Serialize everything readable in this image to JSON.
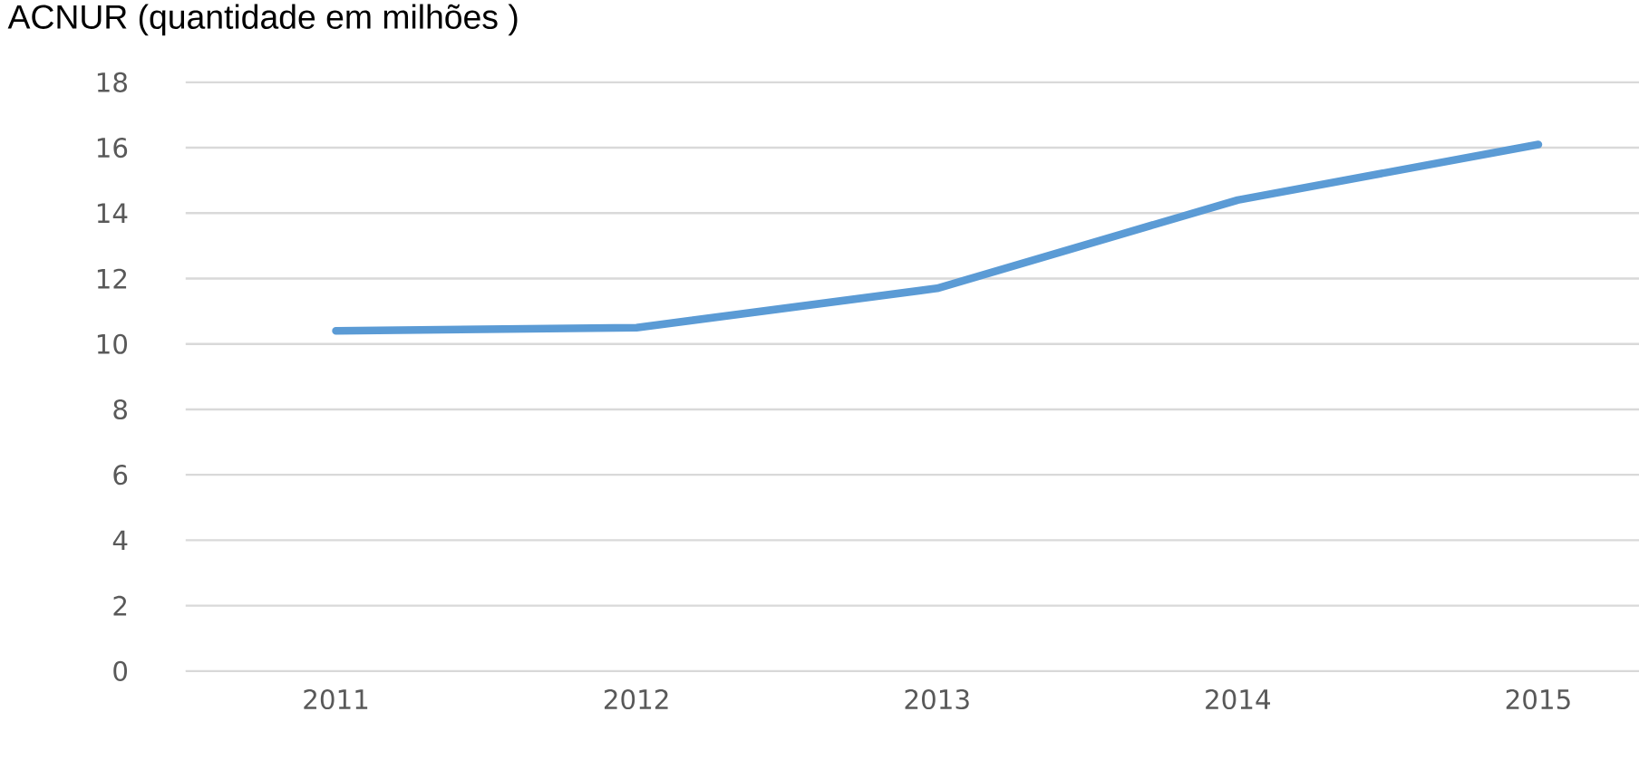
{
  "chart_data": {
    "type": "line",
    "title": "ACNUR (quantidade em milhões )",
    "categories": [
      "2011",
      "2012",
      "2013",
      "2014",
      "2015"
    ],
    "series": [
      {
        "color": "#5b9bd5",
        "values": [
          10.4,
          10.5,
          11.7,
          14.4,
          16.1
        ]
      }
    ],
    "ylim": [
      0,
      18
    ],
    "yticks": [
      0,
      2,
      4,
      6,
      8,
      10,
      12,
      14,
      16,
      18
    ],
    "grid": "y",
    "marker": "none",
    "line_style": "solid"
  }
}
